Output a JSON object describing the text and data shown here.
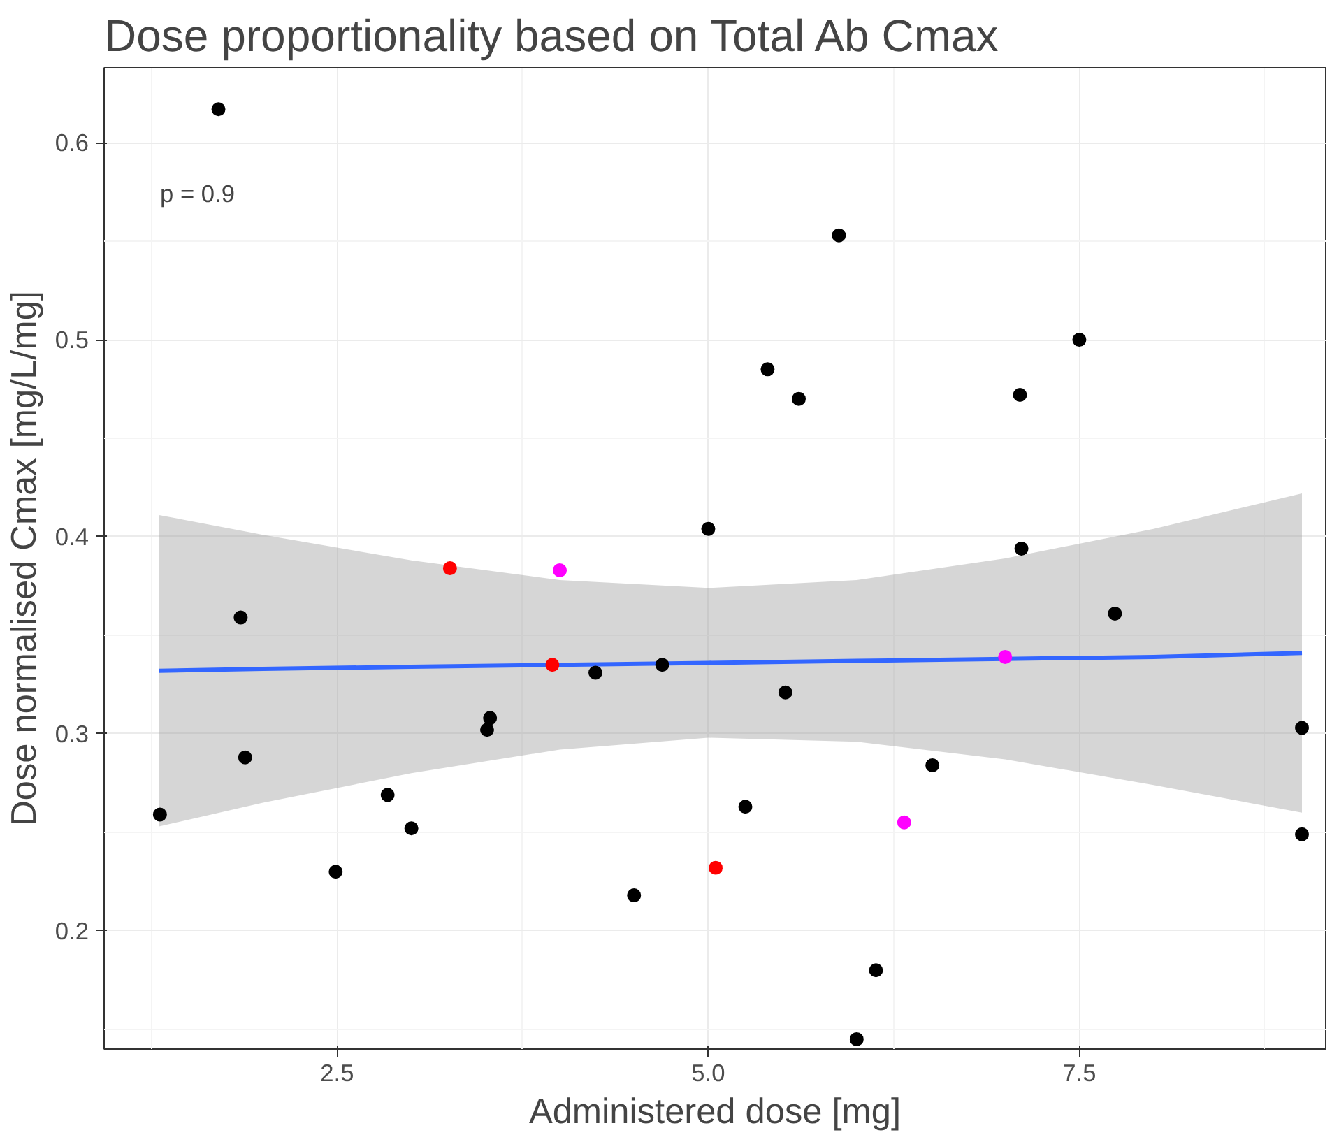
{
  "chart_data": {
    "type": "scatter",
    "title": "Dose proportionality based on Total Ab Cmax",
    "xlabel": "Administered dose [mg]",
    "ylabel": "Dose normalised Cmax [mg/L/mg]",
    "annotations": [
      "p = 0.9"
    ],
    "xlim": [
      0.93,
      9.16
    ],
    "ylim": [
      0.14,
      0.638
    ],
    "xticks": [
      2.5,
      {
        "value": 5,
        "label": "5.0"
      },
      7.5
    ],
    "yticks": [
      0.2,
      0.3,
      0.4,
      0.5,
      0.6
    ],
    "grid": true,
    "marker": "circle",
    "series": [
      {
        "type": "line",
        "marker": "none",
        "color": "#3366ff",
        "x": [
          1.3,
          2,
          3,
          4,
          5,
          6,
          7,
          8,
          9
        ],
        "values": [
          0.332,
          0.333,
          0.334,
          0.335,
          0.336,
          0.337,
          0.338,
          0.339,
          0.341
        ],
        "lower": [
          0.253,
          0.265,
          0.28,
          0.292,
          0.298,
          0.296,
          0.287,
          0.274,
          0.26
        ],
        "upper": [
          0.411,
          0.401,
          0.388,
          0.378,
          0.374,
          0.378,
          0.389,
          0.404,
          0.422
        ]
      },
      {
        "color": "#000000",
        "x": [
          1.306,
          1.7,
          1.85,
          1.88,
          2.49,
          2.84,
          3.0,
          3.51,
          3.53,
          4.24,
          4.5,
          4.69,
          5.0,
          5.25,
          5.4,
          5.52,
          5.61,
          5.88,
          6.0,
          6.13,
          6.51,
          7.1,
          7.11,
          7.5,
          7.74,
          9.0,
          9.0
        ],
        "values": [
          0.259,
          0.617,
          0.359,
          0.288,
          0.23,
          0.269,
          0.252,
          0.302,
          0.308,
          0.331,
          0.218,
          0.335,
          0.404,
          0.263,
          0.485,
          0.321,
          0.47,
          0.553,
          0.145,
          0.18,
          0.284,
          0.472,
          0.394,
          0.5,
          0.361,
          0.303,
          0.249
        ]
      },
      {
        "color": "#ff0000",
        "x": [
          3.26,
          3.95,
          5.05
        ],
        "values": [
          0.384,
          0.335,
          0.232
        ]
      },
      {
        "color": "#ff00ff",
        "x": [
          4.0,
          7.0,
          6.32
        ],
        "values": [
          0.383,
          0.339,
          0.255
        ]
      }
    ]
  }
}
